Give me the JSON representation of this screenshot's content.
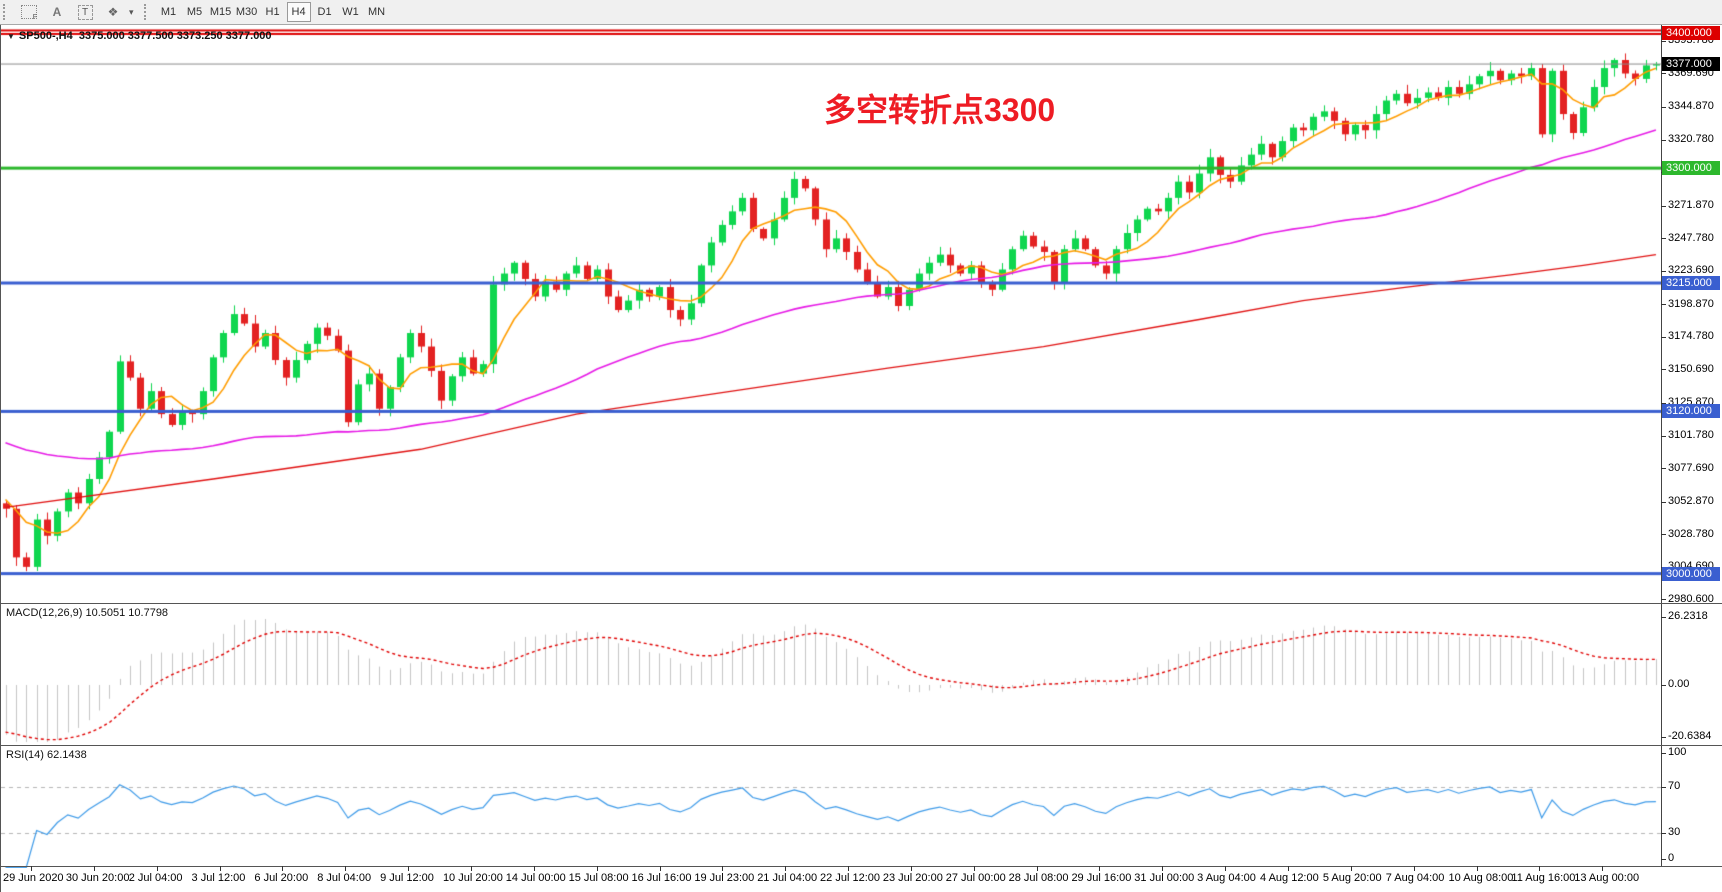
{
  "toolbar": {
    "tools": [
      {
        "name": "indicator-grid-f-icon"
      },
      {
        "name": "text-a-icon",
        "glyph": "A"
      },
      {
        "name": "text-label-icon",
        "glyph": "T"
      },
      {
        "name": "shapes-icon",
        "glyph": "❖"
      }
    ],
    "timeframes": [
      "M1",
      "M5",
      "M15",
      "M30",
      "H1",
      "H4",
      "D1",
      "W1",
      "MN"
    ],
    "active_timeframe": "H4"
  },
  "header": {
    "symbol": "SP500-,H4",
    "ohlc": "3375.000 3377.500 3373.250 3377.000"
  },
  "annotation": {
    "text": "多空转折点3300",
    "color": "#ee1c24"
  },
  "macd_panel": {
    "label": "MACD(12,26,9) 10.5051 10.7798",
    "ticks": [
      "26.2318",
      "0.00",
      "-20.6384"
    ]
  },
  "rsi_panel": {
    "label": "RSI(14) 62.1438",
    "ticks": [
      "100",
      "70",
      "30",
      "0"
    ]
  },
  "chart_data": {
    "type": "candlestick",
    "symbol": "SP500-",
    "timeframe": "H4",
    "current_bar": {
      "open": 3375.0,
      "high": 3377.5,
      "low": 3373.25,
      "close": 3377.0
    },
    "y_domain": [
      2979.0,
      3405.15
    ],
    "y_ticks": [
      "3393.780",
      "3369.690",
      "3344.870",
      "3320.780",
      "3296.690",
      "3271.870",
      "3247.780",
      "3223.690",
      "3198.870",
      "3174.780",
      "3150.690",
      "3125.870",
      "3101.780",
      "3077.690",
      "3052.870",
      "3028.780",
      "3004.690",
      "2980.600"
    ],
    "horizontal_levels": [
      {
        "price": 3400.0,
        "label": "3400.000",
        "line_color": "#dd0000",
        "badge_bg": "#dd0000",
        "style": "double",
        "width": 2
      },
      {
        "price": 3377.0,
        "label": "3377.000",
        "line_color": "#8a8a8a",
        "badge_bg": "#000000",
        "style": "solid",
        "width": 1
      },
      {
        "price": 3300.0,
        "label": "3300.000",
        "line_color": "#2db82d",
        "badge_bg": "#2db82d",
        "style": "solid",
        "width": 3
      },
      {
        "price": 3215.0,
        "label": "3215.000",
        "line_color": "#3a5fd0",
        "badge_bg": "#3a5fd0",
        "style": "solid",
        "width": 3
      },
      {
        "price": 3120.0,
        "label": "3120.000",
        "line_color": "#3a5fd0",
        "badge_bg": "#3a5fd0",
        "style": "solid",
        "width": 3
      },
      {
        "price": 3000.0,
        "label": "3000.000",
        "line_color": "#3a5fd0",
        "badge_bg": "#3a5fd0",
        "style": "solid",
        "width": 3
      }
    ],
    "bull_color": "#0fd64f",
    "bear_color": "#e32222",
    "prehistory_closes": [
      3150,
      3147,
      3143,
      3140,
      3136,
      3132,
      3129,
      3125,
      3121,
      3118,
      3114,
      3110,
      3107,
      3103,
      3100,
      3096,
      3092,
      3089,
      3085,
      3081,
      3078,
      3074,
      3071,
      3067,
      3063,
      3060,
      3058,
      3056,
      3055,
      3052
    ],
    "closes": [
      3048,
      3012,
      3005,
      3040,
      3028,
      3046,
      3060,
      3052,
      3070,
      3086,
      3105,
      3157,
      3145,
      3122,
      3135,
      3118,
      3110,
      3120,
      3118,
      3135,
      3160,
      3178,
      3192,
      3185,
      3168,
      3178,
      3158,
      3145,
      3158,
      3170,
      3182,
      3176,
      3165,
      3112,
      3140,
      3148,
      3122,
      3138,
      3160,
      3178,
      3168,
      3150,
      3128,
      3146,
      3160,
      3148,
      3155,
      3214,
      3222,
      3230,
      3218,
      3205,
      3216,
      3210,
      3222,
      3228,
      3218,
      3225,
      3205,
      3195,
      3202,
      3210,
      3205,
      3212,
      3195,
      3188,
      3200,
      3228,
      3245,
      3258,
      3268,
      3278,
      3255,
      3248,
      3262,
      3278,
      3292,
      3285,
      3262,
      3240,
      3248,
      3238,
      3225,
      3215,
      3205,
      3212,
      3198,
      3210,
      3222,
      3230,
      3236,
      3228,
      3222,
      3228,
      3215,
      3210,
      3225,
      3240,
      3250,
      3242,
      3238,
      3215,
      3240,
      3248,
      3240,
      3228,
      3222,
      3240,
      3252,
      3262,
      3270,
      3268,
      3278,
      3290,
      3282,
      3296,
      3308,
      3295,
      3290,
      3302,
      3310,
      3318,
      3308,
      3320,
      3330,
      3328,
      3338,
      3342,
      3335,
      3325,
      3332,
      3328,
      3340,
      3350,
      3355,
      3348,
      3352,
      3356,
      3352,
      3360,
      3355,
      3362,
      3368,
      3372,
      3365,
      3370,
      3368,
      3374,
      3325,
      3372,
      3340,
      3326,
      3345,
      3360,
      3374,
      3380,
      3370,
      3366,
      3376,
      3377
    ],
    "moving_averages": {
      "fast": {
        "period": 6,
        "color": "#ff9d00"
      },
      "medium": {
        "period": 55,
        "color": "#e61ae6"
      },
      "slow": {
        "color": "#e01010",
        "anchors": [
          [
            0,
            3049
          ],
          [
            20,
            3070
          ],
          [
            40,
            3092
          ],
          [
            55,
            3118
          ],
          [
            70,
            3135
          ],
          [
            85,
            3152
          ],
          [
            100,
            3168
          ],
          [
            115,
            3188
          ],
          [
            125,
            3202
          ],
          [
            135,
            3212
          ],
          [
            145,
            3221
          ],
          [
            152,
            3228
          ],
          [
            159,
            3236
          ]
        ]
      }
    },
    "macd": {
      "fast": 12,
      "slow": 26,
      "signal": 9,
      "value": 10.5051,
      "signal_value": 10.7798,
      "hist_color": "#c4c4c4",
      "signal_color": "#e00000",
      "axis_max": 26.2318,
      "axis_min": -20.6384
    },
    "rsi": {
      "period": 14,
      "value": 62.1438,
      "color": "#3d9ae8",
      "levels": [
        70,
        30
      ],
      "axis": [
        100,
        70,
        30,
        0
      ]
    },
    "x_labels": [
      "29 Jun 2020",
      "30 Jun 20:00",
      "2 Jul 04:00",
      "3 Jul 12:00",
      "6 Jul 20:00",
      "8 Jul 04:00",
      "9 Jul 12:00",
      "10 Jul 20:00",
      "14 Jul 00:00",
      "15 Jul 08:00",
      "16 Jul 16:00",
      "19 Jul 23:00",
      "21 Jul 04:00",
      "22 Jul 12:00",
      "23 Jul 20:00",
      "27 Jul 00:00",
      "28 Jul 08:00",
      "29 Jul 16:00",
      "31 Jul 00:00",
      "3 Aug 04:00",
      "4 Aug 12:00",
      "5 Aug 20:00",
      "7 Aug 04:00",
      "10 Aug 08:00",
      "11 Aug 16:00",
      "13 Aug 00:00"
    ]
  }
}
